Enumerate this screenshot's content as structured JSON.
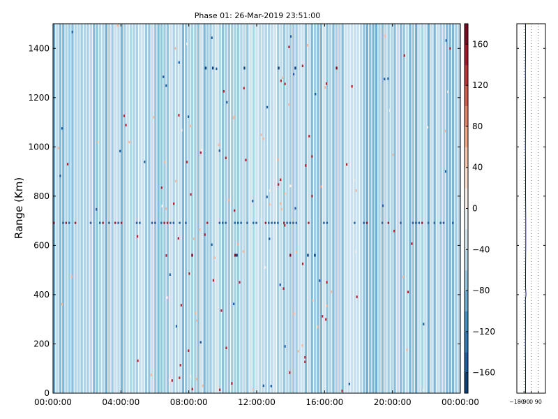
{
  "chart_data": [
    {
      "type": "heatmap",
      "title": "Phase 01: 26-Mar-2019 23:51:00",
      "xlabel": "",
      "ylabel": "Range (Km)",
      "x_ticks": [
        "00:00:00",
        "04:00:00",
        "08:00:00",
        "12:00:00",
        "16:00:00",
        "20:00:00",
        "00:00:00"
      ],
      "y_ticks": [
        0,
        200,
        400,
        600,
        800,
        1000,
        1200,
        1400
      ],
      "ylim": [
        0,
        1500
      ],
      "grid": false,
      "colormap": "RdBu_r",
      "value_range": [
        -180,
        180
      ],
      "dominant_value": -70,
      "colorbar": {
        "ticks": [
          -160,
          -120,
          -80,
          -40,
          0,
          40,
          80,
          120,
          160
        ],
        "range": [
          -180,
          180
        ]
      },
      "features": [
        {
          "name": "outlier row",
          "range_km": 690,
          "description": "horizontal line of strong values"
        },
        {
          "name": "outlier cluster",
          "range_km": 560
        },
        {
          "name": "outlier cluster",
          "range_km": 1320
        }
      ]
    },
    {
      "type": "line",
      "title": "",
      "x_ticks": [
        -180,
        -90,
        0,
        90
      ],
      "x_tick_labels": [
        "−180",
        "−90",
        "0",
        "90"
      ],
      "xlim": [
        -180,
        180
      ],
      "ylim": [
        0,
        1500
      ],
      "grid": true,
      "series": [
        {
          "color": "#00008b",
          "range_km": [
            0,
            100,
            200,
            300,
            380,
            400,
            430,
            500,
            600,
            700,
            800,
            900,
            1000,
            1100,
            1200,
            1300,
            1400,
            1500
          ],
          "values": [
            -70,
            -70,
            -72,
            -70,
            -72,
            -65,
            -70,
            -70,
            -68,
            -68,
            -70,
            -70,
            -72,
            -70,
            -70,
            -72,
            -70,
            -70
          ]
        }
      ]
    }
  ],
  "colors": {
    "base": "#b2d3e7",
    "pale": "#dfecf5",
    "darkblue": "#2166ac",
    "navy": "#053061",
    "red": "#b2182b",
    "darkred": "#67001f",
    "line": "#00008b"
  }
}
